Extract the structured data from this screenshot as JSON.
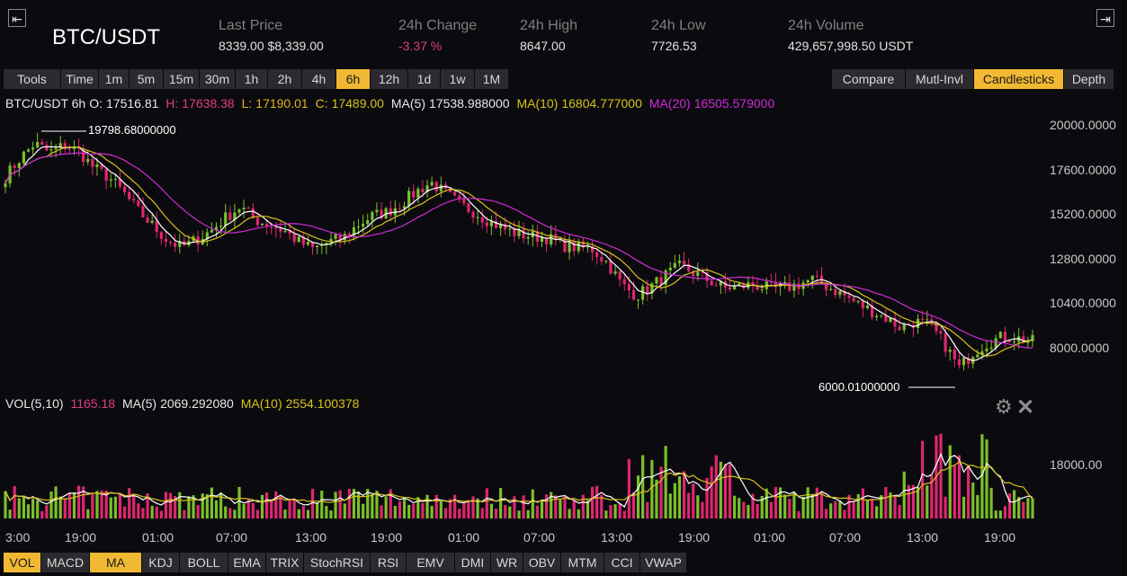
{
  "header": {
    "pair": "BTC/USDT",
    "left_button": "⇤",
    "right_button": "⇥",
    "stats": [
      {
        "label": "Last Price",
        "value": "8339.00 $8,339.00",
        "color": "#e2e2e2"
      },
      {
        "label": "24h Change",
        "value": "-3.37 %",
        "color": "#e03c86"
      },
      {
        "label": "24h High",
        "value": "8647.00",
        "color": "#e2e2e2"
      },
      {
        "label": "24h Low",
        "value": "7726.53",
        "color": "#e2e2e2"
      },
      {
        "label": "24h Volume",
        "value": "429,657,998.50 USDT",
        "color": "#e2e2e2"
      }
    ]
  },
  "toolbar": {
    "left": [
      "Tools",
      "Time",
      "1m",
      "5m",
      "15m",
      "30m",
      "1h",
      "2h",
      "4h",
      "6h",
      "12h",
      "1d",
      "1w",
      "1M"
    ],
    "active_interval": "6h",
    "right": [
      "Compare",
      "Mutl-Invl",
      "Candlesticks",
      "Depth"
    ],
    "active_view": "Candlesticks"
  },
  "main_info": {
    "prefix": "BTC/USDT 6h",
    "o_label": "O:",
    "o_value": "17516.81",
    "h_label": "H:",
    "h_value": "17638.38",
    "l_label": "L:",
    "l_value": "17190.01",
    "c_label": "C:",
    "c_value": "17489.00",
    "ma5_label": "MA(5)",
    "ma5_value": "17538.988000",
    "ma10_label": "MA(10)",
    "ma10_value": "16804.777000",
    "ma20_label": "MA(20)",
    "ma20_value": "16505.579000"
  },
  "vol_info": {
    "prefix": "VOL(5,10)",
    "vol_value": "1165.18",
    "ma5_label": "MA(5)",
    "ma5_value": "2069.292080",
    "ma10_label": "MA(10)",
    "ma10_value": "2554.100378"
  },
  "price_axis": [
    "20000.0000",
    "17600.0000",
    "15200.0000",
    "12800.0000",
    "10400.0000",
    "8000.0000"
  ],
  "vol_axis": [
    "18000.00"
  ],
  "annotations": {
    "high": "19798.68000000",
    "low": "6000.01000000"
  },
  "time_axis": [
    "3:00",
    "19:00",
    "01:00",
    "07:00",
    "13:00",
    "19:00",
    "01:00",
    "07:00",
    "13:00",
    "19:00",
    "01:00",
    "07:00",
    "13:00",
    "19:00"
  ],
  "indicators": [
    "VOL",
    "MACD",
    "MA",
    "KDJ",
    "BOLL",
    "EMA",
    "TRIX",
    "StochRSI",
    "RSI",
    "EMV",
    "DMI",
    "WR",
    "OBV",
    "MTM",
    "CCI",
    "VWAP"
  ],
  "active_indicators": [
    "VOL",
    "MA"
  ],
  "colors": {
    "up": "#7bbf2a",
    "down": "#e0266f",
    "ma5": "#ffffff",
    "ma10": "#d8c21a",
    "ma20": "#d02ad8",
    "accent": "#f0b833"
  },
  "icons": {
    "settings": "gear-icon",
    "close": "close-icon"
  },
  "chart_data": {
    "type": "candlestick",
    "interval": "6h",
    "ylim": [
      6000,
      20000
    ],
    "close_path": [
      17200,
      18200,
      19000,
      18500,
      18900,
      18600,
      17700,
      17200,
      16400,
      15400,
      14600,
      13800,
      13400,
      13800,
      14300,
      15000,
      15600,
      14900,
      14600,
      14300,
      13700,
      13300,
      13700,
      13900,
      14600,
      15100,
      15300,
      15800,
      16400,
      16900,
      16300,
      15700,
      15300,
      14800,
      14400,
      14100,
      14000,
      13900,
      13500,
      13400,
      13300,
      12600,
      11400,
      10800,
      11300,
      11900,
      12400,
      12000,
      11600,
      11200,
      11300,
      11400,
      11200,
      11200,
      11400,
      11700,
      11300,
      10900,
      10400,
      10000,
      9600,
      9100,
      9400,
      9200,
      8200,
      6900,
      7800,
      8300,
      8600,
      8500,
      8339
    ],
    "high_marker": 19798.68,
    "low_marker": 6000.01
  }
}
